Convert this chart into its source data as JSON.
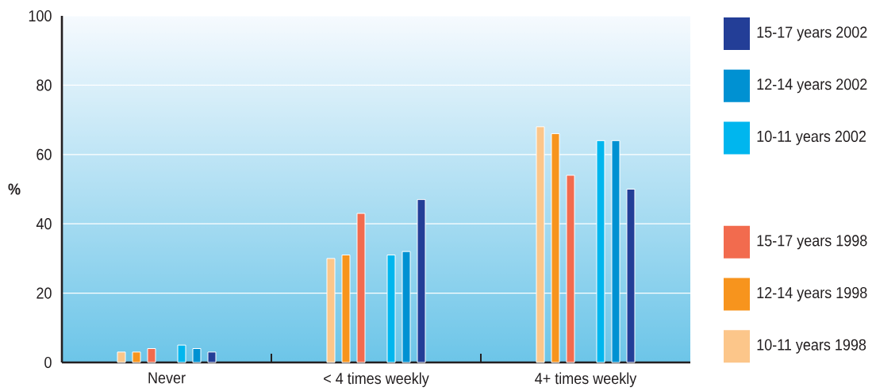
{
  "chart_data": {
    "type": "bar",
    "ylabel": "%",
    "categories": [
      "Never",
      "< 4 times weekly",
      "4+ times weekly"
    ],
    "series": [
      {
        "name": "10-11 years 1998",
        "color": "#fcc68a",
        "values": [
          3,
          30,
          68
        ]
      },
      {
        "name": "12-14 years 1998",
        "color": "#f7941d",
        "values": [
          3,
          31,
          66
        ]
      },
      {
        "name": "15-17 years 1998",
        "color": "#f26b4e",
        "values": [
          4,
          43,
          54
        ]
      },
      {
        "name": "10-11 years 2002",
        "color": "#00b6ee",
        "values": [
          5,
          31,
          64
        ]
      },
      {
        "name": "12-14 years 2002",
        "color": "#0091d2",
        "values": [
          4,
          32,
          64
        ]
      },
      {
        "name": "15-17 years 2002",
        "color": "#233e97",
        "values": [
          3,
          47,
          50
        ]
      }
    ],
    "ylim": [
      0,
      100
    ],
    "yticks": [
      0,
      20,
      40,
      60,
      80,
      100
    ],
    "grid": "y",
    "legend": "right"
  }
}
